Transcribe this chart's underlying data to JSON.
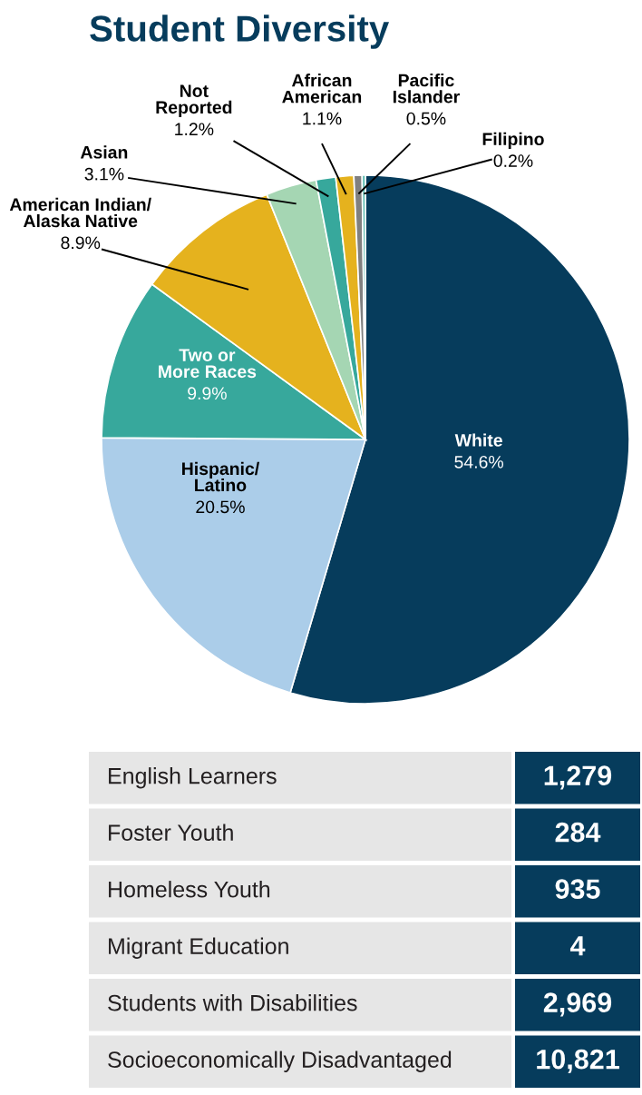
{
  "chart_data": [
    {
      "type": "pie",
      "title": "Student Diversity",
      "categories": [
        "White",
        "Hispanic/\nLatino",
        "Two or\nMore Races",
        "American Indian/\nAlaska Native",
        "Asian",
        "Not\nReported",
        "African\nAmerican",
        "Pacific\nIslander",
        "Filipino"
      ],
      "values": [
        54.6,
        20.5,
        9.9,
        8.9,
        3.1,
        1.2,
        1.1,
        0.5,
        0.2
      ],
      "value_labels": [
        "54.6%",
        "20.5%",
        "9.9%",
        "8.9%",
        "3.1%",
        "1.2%",
        "1.1%",
        "0.5%",
        "0.2%"
      ],
      "colors": [
        "#063c5c",
        "#abcde9",
        "#37a89c",
        "#e5b21e",
        "#a5d6b3",
        "#37a89c",
        "#e5b21e",
        "#808080",
        "#5bbcb0"
      ]
    },
    {
      "type": "other",
      "categories": [
        "English Learners",
        "Foster Youth",
        "Homeless Youth",
        "Migrant Education",
        "Students with Disabilities",
        "Socioeconomically Disadvantaged"
      ],
      "values": [
        1279,
        284,
        935,
        4,
        2969,
        10821
      ],
      "value_labels": [
        "1,279",
        "284",
        "935",
        "4",
        "2,969",
        "10,821"
      ]
    }
  ]
}
